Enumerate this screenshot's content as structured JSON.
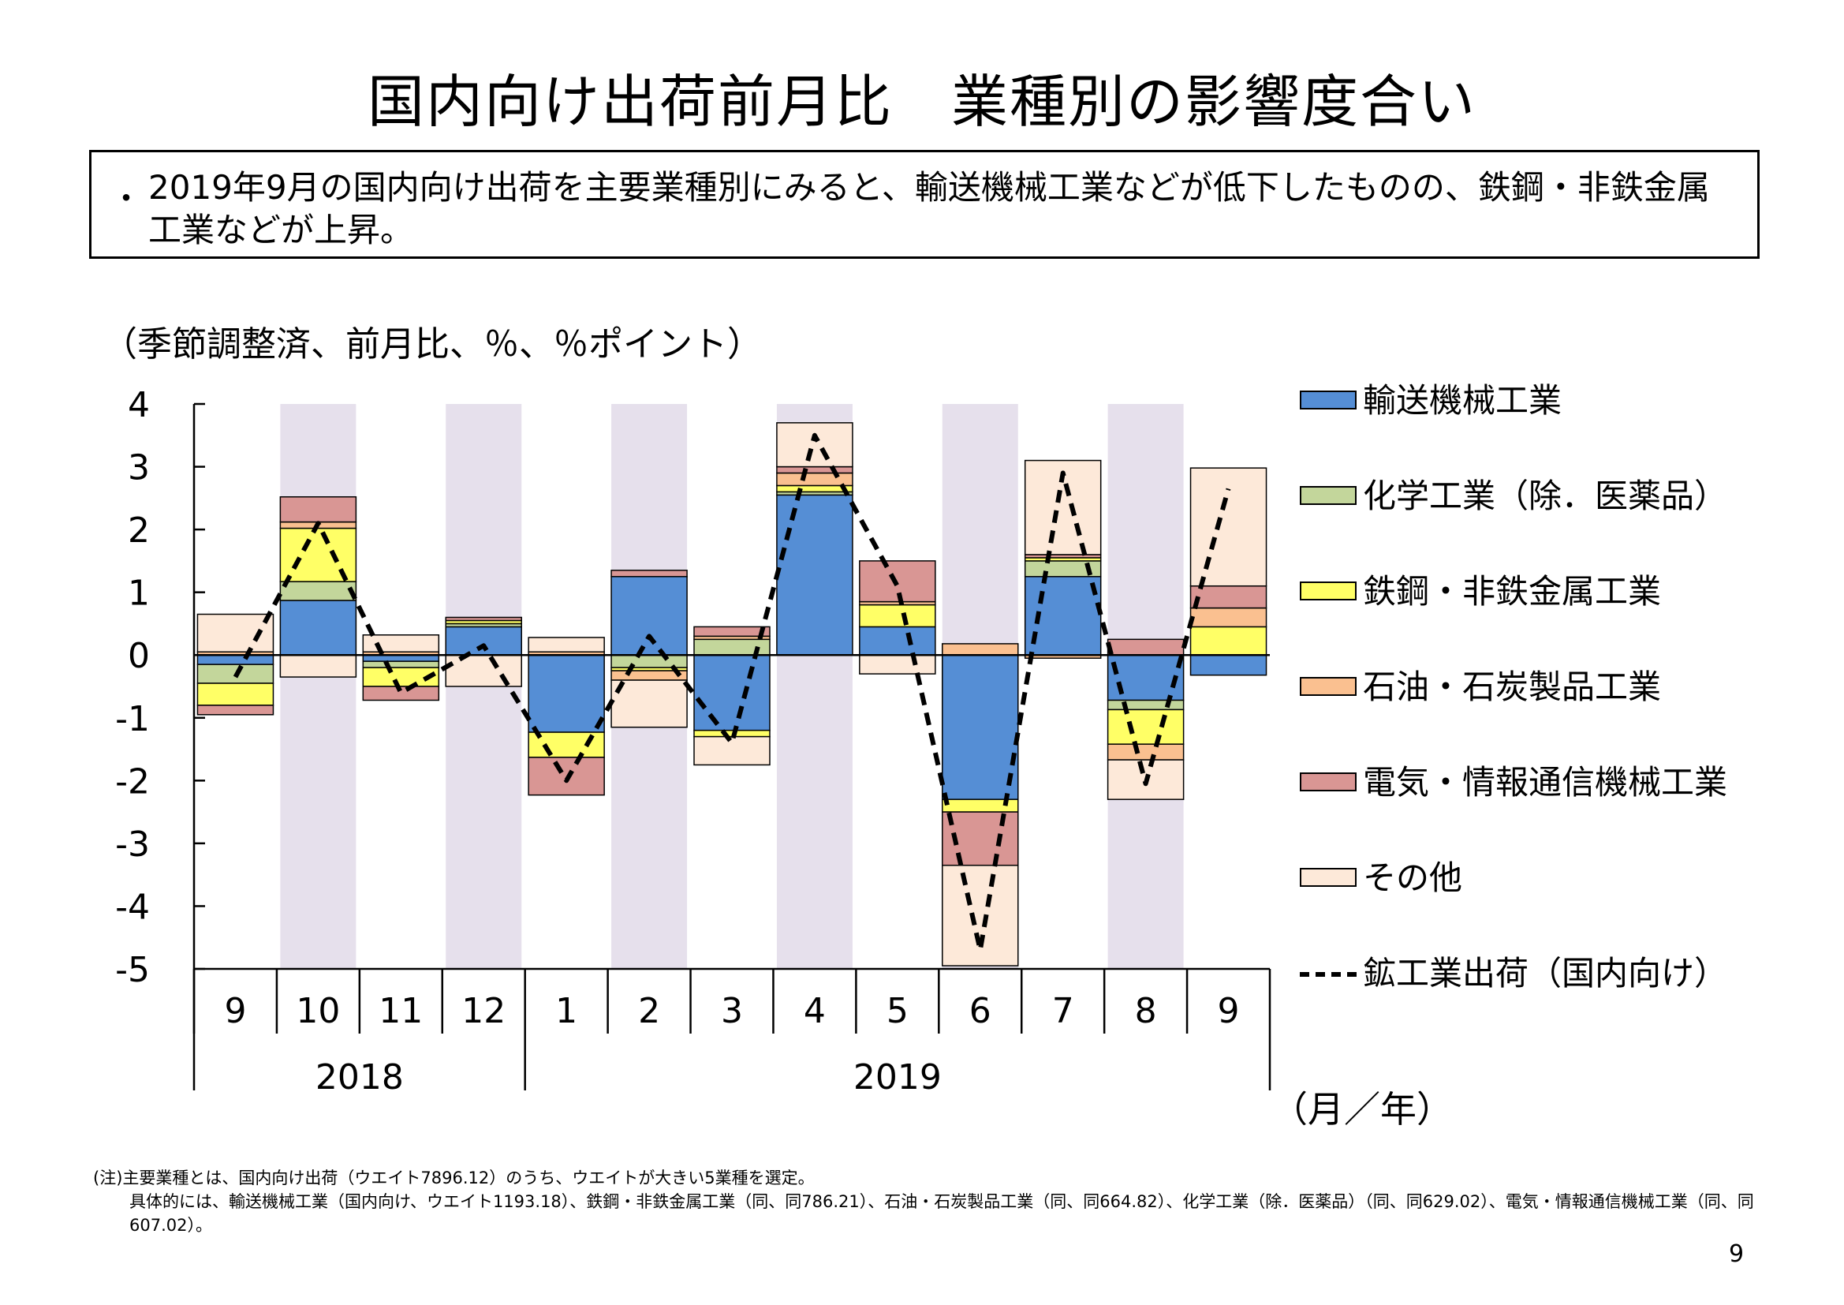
{
  "title": "国内向け出荷前月比　業種別の影響度合い",
  "bullet": {
    "dot": "・",
    "text": "2019年9月の国内向け出荷を主要業種別にみると、輸送機械工業などが低下したものの、鉄鋼・非鉄金属工業などが上昇。"
  },
  "unit_label": "（季節調整済、前月比、％、％ポイント）",
  "axis_unit": "（月／年）",
  "legend": {
    "items": [
      {
        "label": "輸送機械工業",
        "color": "#558ED5",
        "kind": "bar"
      },
      {
        "label": "化学工業（除．医薬品）",
        "color": "#C3D69B",
        "kind": "bar"
      },
      {
        "label": "鉄鋼・非鉄金属工業",
        "color": "#FFFF66",
        "kind": "bar"
      },
      {
        "label": "石油・石炭製品工業",
        "color": "#FAC090",
        "kind": "bar"
      },
      {
        "label": "電気・情報通信機械工業",
        "color": "#D99694",
        "kind": "bar"
      },
      {
        "label": "その他",
        "color": "#FDE9D9",
        "kind": "bar"
      },
      {
        "label": "鉱工業出荷（国内向け）",
        "color": "#000000",
        "kind": "line"
      }
    ]
  },
  "chart_data": {
    "type": "bar",
    "stacked": true,
    "categories": [
      "9",
      "10",
      "11",
      "12",
      "1",
      "2",
      "3",
      "4",
      "5",
      "6",
      "7",
      "8",
      "9"
    ],
    "year_groups": [
      {
        "label": "2018",
        "from": 0,
        "to": 3
      },
      {
        "label": "2019",
        "from": 4,
        "to": 12
      }
    ],
    "ylim": [
      -5,
      4
    ],
    "yticks": [
      "4",
      "3",
      "2",
      "1",
      "0",
      "-1",
      "-2",
      "-3",
      "-4",
      "-5"
    ],
    "shaded_categories": [
      1,
      3,
      5,
      7,
      9,
      11
    ],
    "shade_color": "#E6E0EC",
    "series": [
      {
        "name": "輸送機械工業",
        "color": "#558ED5",
        "values": [
          -0.15,
          0.87,
          -0.1,
          0.45,
          -1.23,
          1.25,
          -1.2,
          2.55,
          0.45,
          -2.3,
          1.25,
          -0.72,
          -0.32
        ]
      },
      {
        "name": "化学工業（除．医薬品）",
        "color": "#C3D69B",
        "values": [
          -0.3,
          0.3,
          -0.1,
          0.05,
          0,
          -0.2,
          0.25,
          0.05,
          0,
          0,
          0.25,
          -0.15,
          0
        ]
      },
      {
        "name": "鉄鋼・非鉄金属工業",
        "color": "#FFFF66",
        "values": [
          -0.35,
          0.85,
          -0.3,
          0.05,
          -0.4,
          -0.05,
          -0.1,
          0.1,
          0.35,
          -0.2,
          0.05,
          -0.55,
          0.45
        ]
      },
      {
        "name": "石油・石炭製品工業",
        "color": "#FAC090",
        "values": [
          0.05,
          0.1,
          0.05,
          0,
          0.05,
          -0.15,
          0.05,
          0.2,
          0.05,
          0.18,
          -0.05,
          -0.25,
          0.3
        ]
      },
      {
        "name": "電気・情報通信機械工業",
        "color": "#D99694",
        "values": [
          -0.15,
          0.4,
          -0.22,
          0.05,
          -0.6,
          0.1,
          0.15,
          0.1,
          0.65,
          -0.85,
          0.05,
          0.25,
          0.35
        ]
      },
      {
        "name": "その他",
        "color": "#FDE9D9",
        "values": [
          0.6,
          -0.35,
          0.27,
          -0.5,
          0.23,
          -0.75,
          -0.45,
          0.7,
          -0.3,
          -1.6,
          1.5,
          -0.63,
          1.88
        ]
      }
    ],
    "line": {
      "name": "鉱工業出荷（国内向け）",
      "color": "#000000",
      "values": [
        -0.35,
        2.1,
        -0.6,
        0.15,
        -2.0,
        0.3,
        -1.4,
        3.5,
        1.1,
        -4.7,
        2.9,
        -2.05,
        2.65
      ]
    }
  },
  "note": {
    "line1": "(注)主要業種とは、国内向け出荷（ウエイト7896.12）のうち、ウエイトが大きい5業種を選定。",
    "line2": "具体的には、輸送機械工業（国内向け、ウエイト1193.18）、鉄鋼・非鉄金属工業（同、同786.21）、石油・石炭製品工業（同、同664.82）、化学工業（除．医薬品）（同、同629.02）、電気・情報通信機械工業（同、同607.02）。"
  },
  "page_number": "9"
}
